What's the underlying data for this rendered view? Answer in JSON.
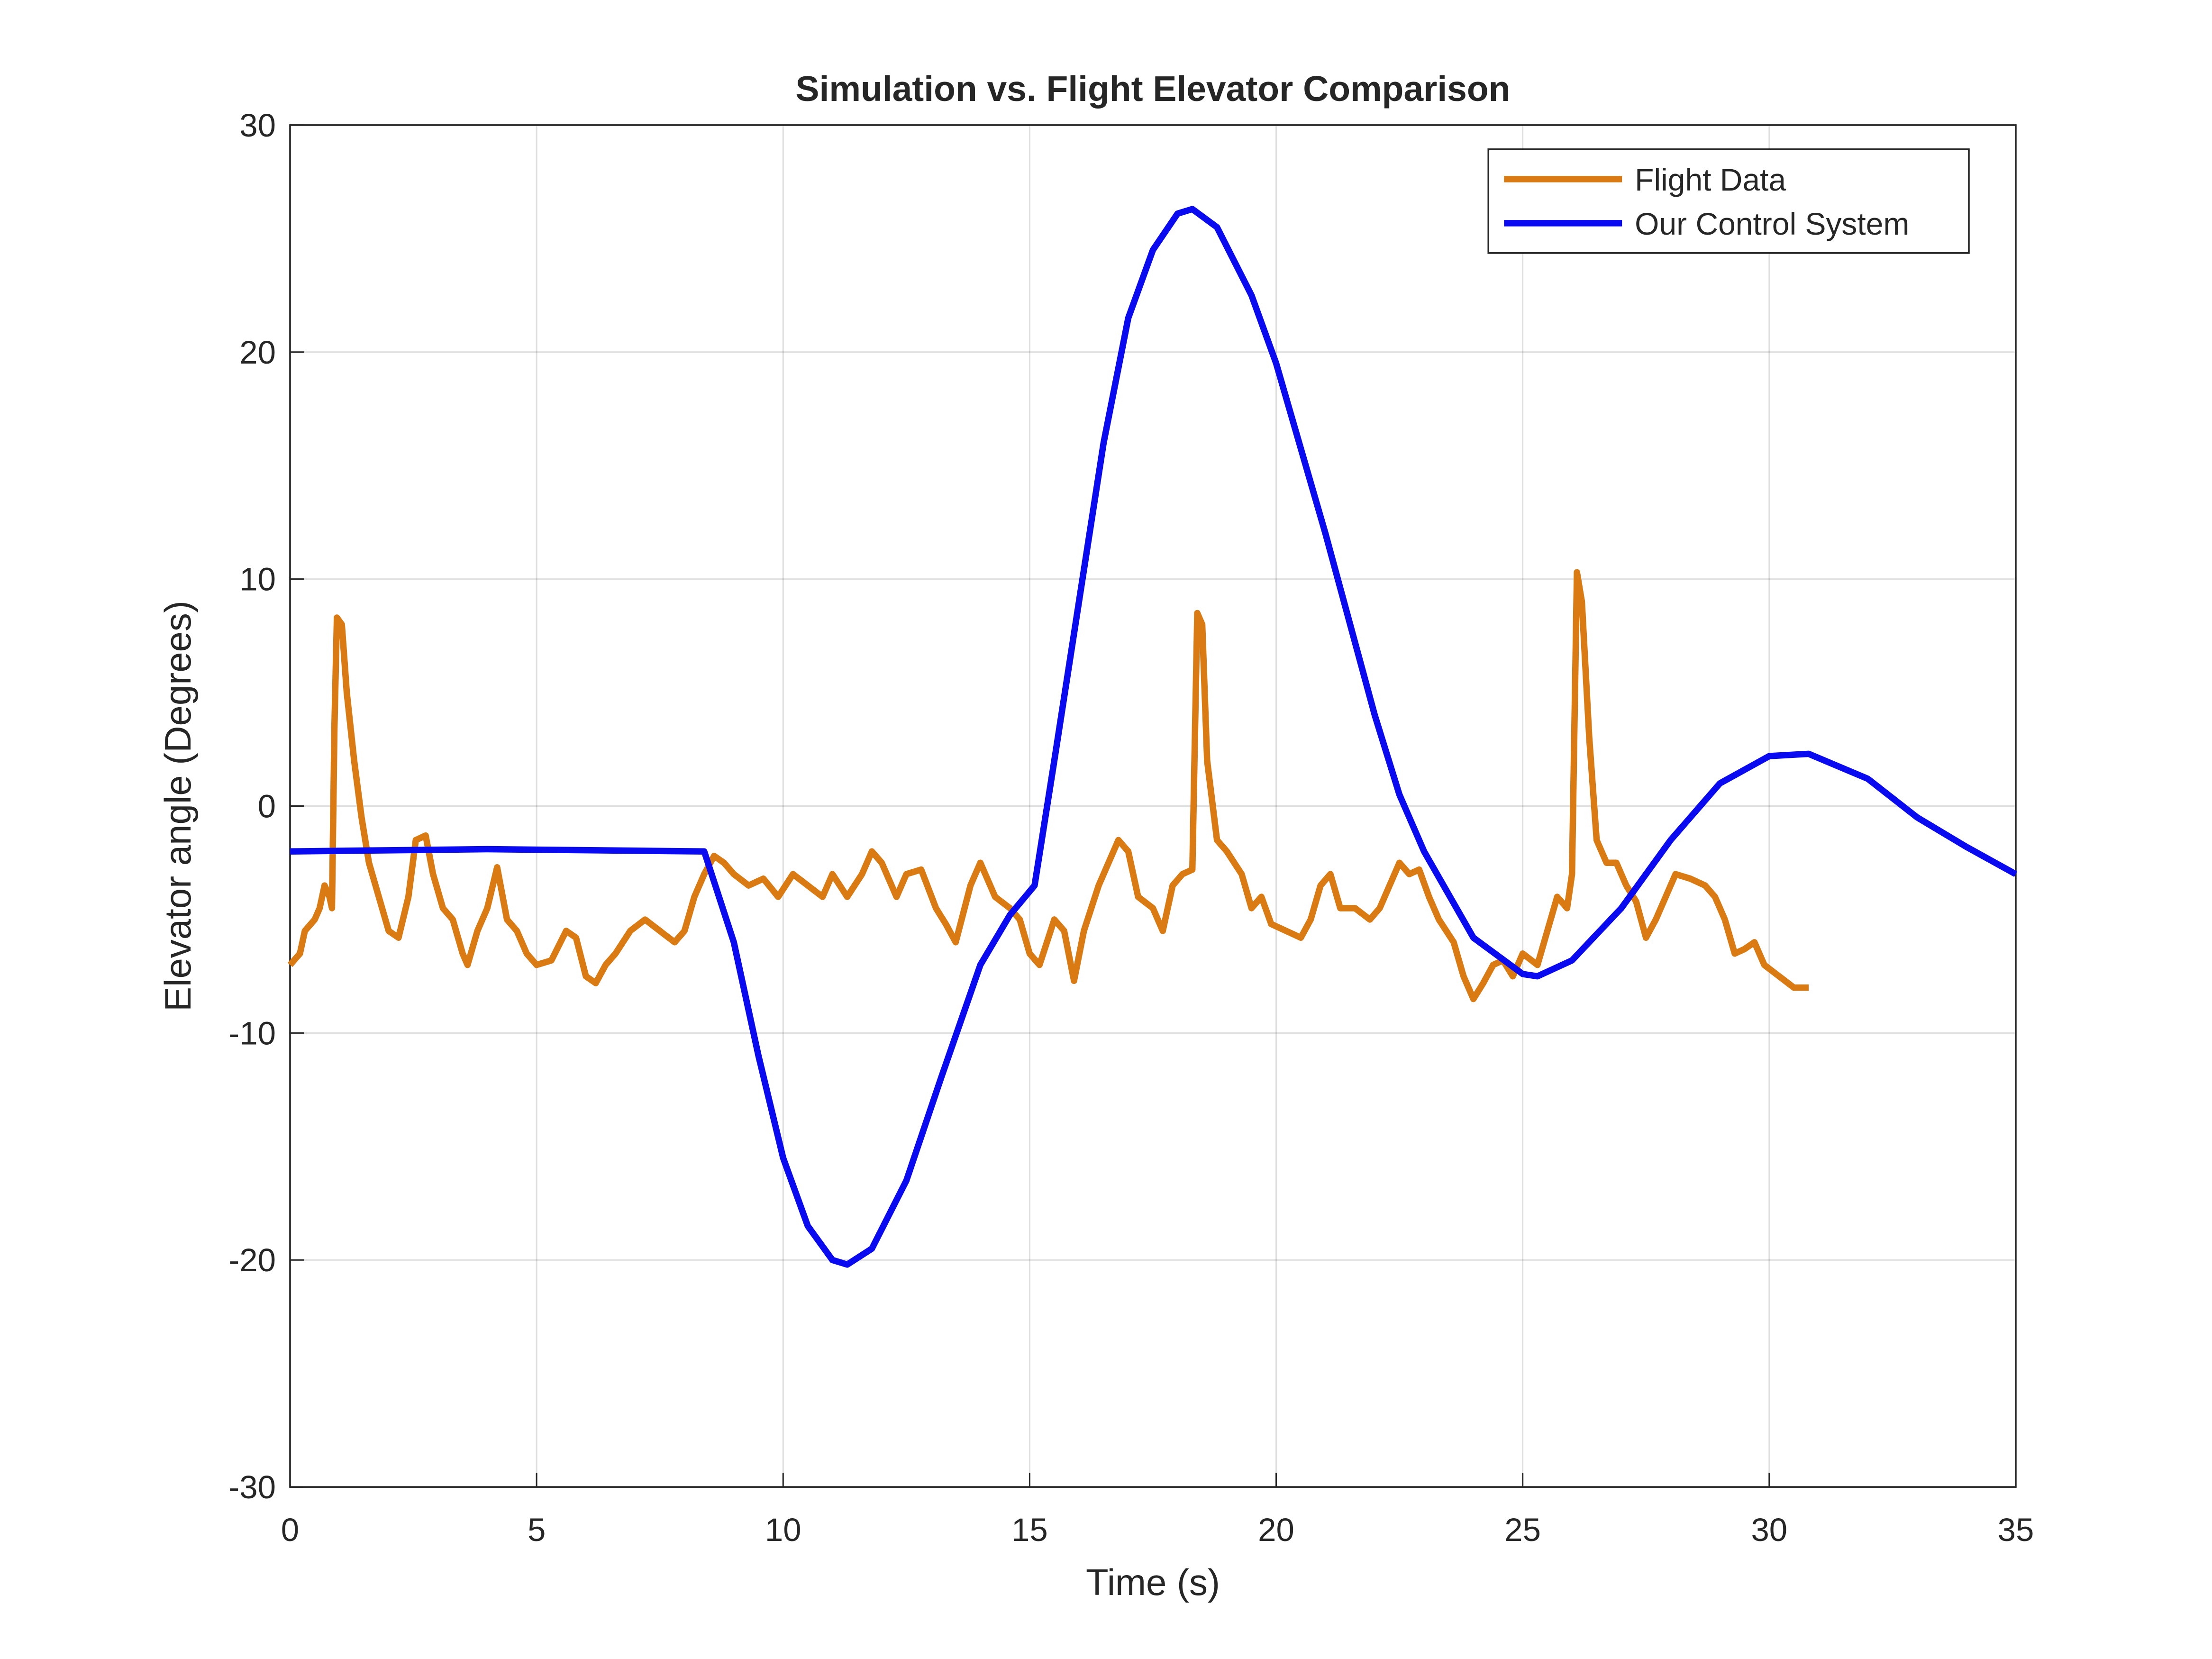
{
  "chart_data": {
    "type": "line",
    "title": "Simulation vs. Flight Elevator Comparison",
    "x_label": "Time (s)",
    "y_label": "Elevator angle (Degrees)",
    "xlim": [
      0,
      35
    ],
    "xticks": [
      0,
      5,
      10,
      15,
      20,
      25,
      30,
      35
    ],
    "ylim": [
      -30,
      30
    ],
    "yticks": [
      -30,
      -20,
      -10,
      0,
      10,
      20,
      30
    ],
    "grid": true,
    "legend": "upper right",
    "series": [
      {
        "name": "Flight Data",
        "color": "#d97a12",
        "x": [
          0,
          0.2,
          0.3,
          0.5,
          0.6,
          0.7,
          0.8,
          0.85,
          0.9,
          0.95,
          1.05,
          1.15,
          1.3,
          1.45,
          1.6,
          1.8,
          2.0,
          2.2,
          2.4,
          2.55,
          2.75,
          2.9,
          3.1,
          3.3,
          3.5,
          3.6,
          3.8,
          4.0,
          4.2,
          4.4,
          4.6,
          4.8,
          5.0,
          5.3,
          5.6,
          5.8,
          6.0,
          6.2,
          6.4,
          6.6,
          6.9,
          7.2,
          7.5,
          7.8,
          8.0,
          8.2,
          8.4,
          8.6,
          8.8,
          9.0,
          9.3,
          9.6,
          9.9,
          10.2,
          10.5,
          10.8,
          11.0,
          11.3,
          11.6,
          11.8,
          12.0,
          12.3,
          12.5,
          12.8,
          13.1,
          13.3,
          13.5,
          13.8,
          14.0,
          14.3,
          14.6,
          14.8,
          15.0,
          15.2,
          15.5,
          15.7,
          15.9,
          16.1,
          16.4,
          16.6,
          16.8,
          17.0,
          17.2,
          17.5,
          17.7,
          17.9,
          18.1,
          18.3,
          18.4,
          18.5,
          18.6,
          18.8,
          19.0,
          19.3,
          19.5,
          19.7,
          19.9,
          20.2,
          20.5,
          20.7,
          20.9,
          21.1,
          21.3,
          21.6,
          21.9,
          22.1,
          22.3,
          22.5,
          22.7,
          22.9,
          23.1,
          23.3,
          23.6,
          23.8,
          24.0,
          24.2,
          24.4,
          24.6,
          24.8,
          25.0,
          25.3,
          25.5,
          25.7,
          25.9,
          26.0,
          26.1,
          26.2,
          26.35,
          26.5,
          26.7,
          26.9,
          27.1,
          27.3,
          27.5,
          27.7,
          27.9,
          28.1,
          28.4,
          28.7,
          28.9,
          29.1,
          29.3,
          29.5,
          29.7,
          29.9,
          30.2,
          30.5,
          30.8
        ],
        "values": [
          -7,
          -6.5,
          -5.5,
          -5,
          -4.5,
          -3.5,
          -4,
          -4.5,
          3.5,
          8.3,
          8,
          5,
          2,
          -0.5,
          -2.5,
          -4,
          -5.5,
          -5.8,
          -4,
          -1.5,
          -1.3,
          -3,
          -4.5,
          -5,
          -6.5,
          -7,
          -5.5,
          -4.5,
          -2.7,
          -5,
          -5.5,
          -6.5,
          -7,
          -6.8,
          -5.5,
          -5.8,
          -7.5,
          -7.8,
          -7,
          -6.5,
          -5.5,
          -5,
          -5.5,
          -6,
          -5.5,
          -4,
          -3,
          -2.2,
          -2.5,
          -3,
          -3.5,
          -3.2,
          -4,
          -3,
          -3.5,
          -4,
          -3,
          -4,
          -3,
          -2,
          -2.5,
          -4,
          -3,
          -2.8,
          -4.5,
          -5.2,
          -6,
          -3.5,
          -2.5,
          -4,
          -4.5,
          -5,
          -6.5,
          -7,
          -5,
          -5.5,
          -7.7,
          -5.5,
          -3.5,
          -2.5,
          -1.5,
          -2,
          -4,
          -4.5,
          -5.5,
          -3.5,
          -3,
          -2.8,
          8.5,
          8,
          2,
          -1.5,
          -2,
          -3,
          -4.5,
          -4,
          -5.2,
          -5.5,
          -5.8,
          -5,
          -3.5,
          -3,
          -4.5,
          -4.5,
          -5,
          -4.5,
          -3.5,
          -2.5,
          -3,
          -2.8,
          -4,
          -5,
          -6,
          -7.5,
          -8.5,
          -7.8,
          -7,
          -6.8,
          -7.5,
          -6.5,
          -7,
          -5.5,
          -4,
          -4.5,
          -3,
          10.3,
          9,
          3,
          -1.5,
          -2.5,
          -2.5,
          -3.5,
          -4.2,
          -5.8,
          -5,
          -4,
          -3,
          -3.2,
          -3.5,
          -4,
          -5,
          -6.5,
          -6.3,
          -6,
          -7,
          -7.5,
          -8,
          -8
        ]
      },
      {
        "name": "Our Control System",
        "color": "#0a0af0",
        "x": [
          0,
          4,
          8.4,
          9,
          9.5,
          10,
          10.5,
          11,
          11.3,
          11.8,
          12.5,
          13.2,
          14,
          14.6,
          15.1,
          15.5,
          16,
          16.5,
          17,
          17.5,
          18,
          18.3,
          18.8,
          19.5,
          20,
          21,
          22,
          22.5,
          23,
          24,
          25,
          25.3,
          26,
          27,
          28,
          29,
          30,
          30.8,
          32,
          33,
          34,
          35
        ],
        "values": [
          -2,
          -1.9,
          -2,
          -6,
          -11,
          -15.5,
          -18.5,
          -20,
          -20.2,
          -19.5,
          -16.5,
          -12,
          -7,
          -4.8,
          -3.5,
          2,
          9,
          16,
          21.5,
          24.5,
          26.1,
          26.3,
          25.5,
          22.5,
          19.5,
          12,
          4,
          0.5,
          -2,
          -5.8,
          -7.4,
          -7.5,
          -6.8,
          -4.5,
          -1.5,
          1,
          2.2,
          2.3,
          1.2,
          -0.5,
          -1.8,
          -3
        ]
      }
    ]
  }
}
